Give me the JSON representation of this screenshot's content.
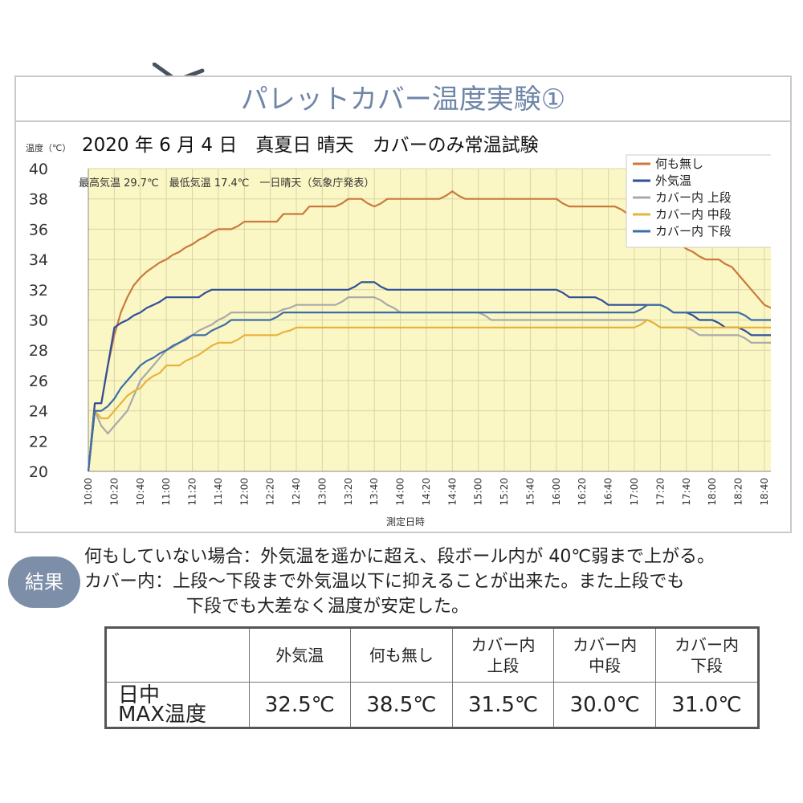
{
  "page_title": "パレットカバー温度実験①",
  "chart_data": {
    "type": "line",
    "title": "2020 年 6 月 4 日　真夏日  晴天　カバーのみ常温試験",
    "subtitle": "最高気温 29.7℃　最低気温 17.4℃　一日晴天（気象庁発表）",
    "ylabel": "温度（℃）",
    "xlabel": "測定日時",
    "ylim": [
      20,
      40
    ],
    "yticks": [
      "20",
      "22",
      "24",
      "26",
      "28",
      "30",
      "32",
      "34",
      "36",
      "38",
      "40"
    ],
    "categories": [
      "10:00",
      "10:05",
      "10:10",
      "10:15",
      "10:20",
      "10:25",
      "10:30",
      "10:35",
      "10:40",
      "10:45",
      "10:50",
      "10:55",
      "11:00",
      "11:05",
      "11:10",
      "11:15",
      "11:20",
      "11:25",
      "11:30",
      "11:35",
      "11:40",
      "11:45",
      "11:50",
      "11:55",
      "12:00",
      "12:05",
      "12:10",
      "12:15",
      "12:20",
      "12:25",
      "12:30",
      "12:35",
      "12:40",
      "12:45",
      "12:50",
      "12:55",
      "13:00",
      "13:05",
      "13:10",
      "13:15",
      "13:20",
      "13:25",
      "13:30",
      "13:35",
      "13:40",
      "13:45",
      "13:50",
      "13:55",
      "14:00",
      "14:05",
      "14:10",
      "14:15",
      "14:20",
      "14:25",
      "14:30",
      "14:35",
      "14:40",
      "14:45",
      "14:50",
      "14:55",
      "15:00",
      "15:05",
      "15:10",
      "15:15",
      "15:20",
      "15:25",
      "15:30",
      "15:35",
      "15:40",
      "15:45",
      "15:50",
      "15:55",
      "16:00",
      "16:05",
      "16:10",
      "16:15",
      "16:20",
      "16:25",
      "16:30",
      "16:35",
      "16:40",
      "16:45",
      "16:50",
      "16:55",
      "17:00",
      "17:05",
      "17:10",
      "17:15",
      "17:20",
      "17:25",
      "17:30",
      "17:35",
      "17:40",
      "17:45",
      "17:50",
      "17:55",
      "18:00",
      "18:05",
      "18:10",
      "18:15",
      "18:20",
      "18:25",
      "18:30",
      "18:35",
      "18:40",
      "18:45"
    ],
    "xtick_labels": [
      "10:00",
      "10:20",
      "10:40",
      "11:00",
      "11:20",
      "11:40",
      "12:00",
      "12:20",
      "12:40",
      "13:00",
      "13:20",
      "13:40",
      "14:00",
      "14:20",
      "14:40",
      "15:00",
      "15:20",
      "15:40",
      "16:00",
      "16:20",
      "16:40",
      "17:00",
      "17:20",
      "17:40",
      "18:00",
      "18:20",
      "18:40"
    ],
    "legend_position": "top-right",
    "grid": true,
    "series": [
      {
        "name": "何も無し",
        "color": "#c97a3c",
        "values": [
          20.0,
          24.5,
          24.5,
          27.0,
          29.0,
          30.5,
          31.5,
          32.3,
          32.8,
          33.2,
          33.5,
          33.8,
          34.0,
          34.3,
          34.5,
          34.8,
          35.0,
          35.3,
          35.5,
          35.8,
          36.0,
          36.0,
          36.0,
          36.2,
          36.5,
          36.5,
          36.5,
          36.5,
          36.5,
          36.5,
          37.0,
          37.0,
          37.0,
          37.0,
          37.5,
          37.5,
          37.5,
          37.5,
          37.5,
          37.7,
          38.0,
          38.0,
          38.0,
          37.7,
          37.5,
          37.7,
          38.0,
          38.0,
          38.0,
          38.0,
          38.0,
          38.0,
          38.0,
          38.0,
          38.0,
          38.2,
          38.5,
          38.2,
          38.0,
          38.0,
          38.0,
          38.0,
          38.0,
          38.0,
          38.0,
          38.0,
          38.0,
          38.0,
          38.0,
          38.0,
          38.0,
          38.0,
          38.0,
          37.7,
          37.5,
          37.5,
          37.5,
          37.5,
          37.5,
          37.5,
          37.5,
          37.5,
          37.3,
          37.0,
          36.7,
          36.5,
          36.2,
          36.0,
          35.7,
          35.5,
          35.2,
          35.0,
          34.7,
          34.5,
          34.2,
          34.0,
          34.0,
          34.0,
          33.7,
          33.5,
          33.0,
          32.5,
          32.0,
          31.5,
          31.0,
          30.8
        ]
      },
      {
        "name": "外気温",
        "color": "#2f4f9a",
        "values": [
          20.0,
          24.5,
          24.5,
          27.0,
          29.5,
          29.8,
          30.0,
          30.3,
          30.5,
          30.8,
          31.0,
          31.2,
          31.5,
          31.5,
          31.5,
          31.5,
          31.5,
          31.5,
          31.8,
          32.0,
          32.0,
          32.0,
          32.0,
          32.0,
          32.0,
          32.0,
          32.0,
          32.0,
          32.0,
          32.0,
          32.0,
          32.0,
          32.0,
          32.0,
          32.0,
          32.0,
          32.0,
          32.0,
          32.0,
          32.0,
          32.0,
          32.2,
          32.5,
          32.5,
          32.5,
          32.2,
          32.0,
          32.0,
          32.0,
          32.0,
          32.0,
          32.0,
          32.0,
          32.0,
          32.0,
          32.0,
          32.0,
          32.0,
          32.0,
          32.0,
          32.0,
          32.0,
          32.0,
          32.0,
          32.0,
          32.0,
          32.0,
          32.0,
          32.0,
          32.0,
          32.0,
          32.0,
          32.0,
          31.8,
          31.5,
          31.5,
          31.5,
          31.5,
          31.5,
          31.3,
          31.0,
          31.0,
          31.0,
          31.0,
          31.0,
          31.0,
          31.0,
          31.0,
          31.0,
          30.8,
          30.5,
          30.5,
          30.5,
          30.3,
          30.0,
          30.0,
          30.0,
          29.8,
          29.5,
          29.5,
          29.5,
          29.3,
          29.0,
          29.0,
          29.0,
          29.0
        ]
      },
      {
        "name": "カバー内 上段",
        "color": "#a9a9a9",
        "values": [
          20.0,
          24.0,
          23.0,
          22.5,
          23.0,
          23.5,
          24.0,
          25.0,
          26.0,
          26.5,
          27.0,
          27.5,
          28.0,
          28.2,
          28.5,
          28.8,
          29.0,
          29.3,
          29.5,
          29.7,
          30.0,
          30.2,
          30.5,
          30.5,
          30.5,
          30.5,
          30.5,
          30.5,
          30.5,
          30.5,
          30.7,
          30.8,
          31.0,
          31.0,
          31.0,
          31.0,
          31.0,
          31.0,
          31.0,
          31.2,
          31.5,
          31.5,
          31.5,
          31.5,
          31.5,
          31.3,
          31.0,
          30.8,
          30.5,
          30.5,
          30.5,
          30.5,
          30.5,
          30.5,
          30.5,
          30.5,
          30.5,
          30.5,
          30.5,
          30.5,
          30.5,
          30.3,
          30.0,
          30.0,
          30.0,
          30.0,
          30.0,
          30.0,
          30.0,
          30.0,
          30.0,
          30.0,
          30.0,
          30.0,
          30.0,
          30.0,
          30.0,
          30.0,
          30.0,
          30.0,
          30.0,
          30.0,
          30.0,
          30.0,
          30.0,
          30.0,
          30.0,
          29.8,
          29.5,
          29.5,
          29.5,
          29.5,
          29.5,
          29.3,
          29.0,
          29.0,
          29.0,
          29.0,
          29.0,
          29.0,
          29.0,
          28.8,
          28.5,
          28.5,
          28.5,
          28.5
        ]
      },
      {
        "name": "カバー内 中段",
        "color": "#e8b33c",
        "values": [
          20.0,
          24.0,
          23.5,
          23.5,
          24.0,
          24.5,
          25.0,
          25.3,
          25.5,
          26.0,
          26.3,
          26.5,
          27.0,
          27.0,
          27.0,
          27.3,
          27.5,
          27.7,
          28.0,
          28.3,
          28.5,
          28.5,
          28.5,
          28.7,
          29.0,
          29.0,
          29.0,
          29.0,
          29.0,
          29.0,
          29.2,
          29.3,
          29.5,
          29.5,
          29.5,
          29.5,
          29.5,
          29.5,
          29.5,
          29.5,
          29.5,
          29.5,
          29.5,
          29.5,
          29.5,
          29.5,
          29.5,
          29.5,
          29.5,
          29.5,
          29.5,
          29.5,
          29.5,
          29.5,
          29.5,
          29.5,
          29.5,
          29.5,
          29.5,
          29.5,
          29.5,
          29.5,
          29.5,
          29.5,
          29.5,
          29.5,
          29.5,
          29.5,
          29.5,
          29.5,
          29.5,
          29.5,
          29.5,
          29.5,
          29.5,
          29.5,
          29.5,
          29.5,
          29.5,
          29.5,
          29.5,
          29.5,
          29.5,
          29.5,
          29.5,
          29.7,
          30.0,
          29.8,
          29.5,
          29.5,
          29.5,
          29.5,
          29.5,
          29.5,
          29.5,
          29.5,
          29.5,
          29.5,
          29.5,
          29.5,
          29.5,
          29.5,
          29.5,
          29.5,
          29.5,
          29.5
        ]
      },
      {
        "name": "カバー内 下段",
        "color": "#3b6ea8",
        "values": [
          20.0,
          24.0,
          24.0,
          24.3,
          24.8,
          25.5,
          26.0,
          26.5,
          27.0,
          27.3,
          27.5,
          27.8,
          28.0,
          28.3,
          28.5,
          28.7,
          29.0,
          29.0,
          29.0,
          29.3,
          29.5,
          29.7,
          30.0,
          30.0,
          30.0,
          30.0,
          30.0,
          30.0,
          30.0,
          30.2,
          30.5,
          30.5,
          30.5,
          30.5,
          30.5,
          30.5,
          30.5,
          30.5,
          30.5,
          30.5,
          30.5,
          30.5,
          30.5,
          30.5,
          30.5,
          30.5,
          30.5,
          30.5,
          30.5,
          30.5,
          30.5,
          30.5,
          30.5,
          30.5,
          30.5,
          30.5,
          30.5,
          30.5,
          30.5,
          30.5,
          30.5,
          30.5,
          30.5,
          30.5,
          30.5,
          30.5,
          30.5,
          30.5,
          30.5,
          30.5,
          30.5,
          30.5,
          30.5,
          30.5,
          30.5,
          30.5,
          30.5,
          30.5,
          30.5,
          30.5,
          30.5,
          30.5,
          30.5,
          30.5,
          30.5,
          30.7,
          31.0,
          31.0,
          31.0,
          30.8,
          30.5,
          30.5,
          30.5,
          30.5,
          30.5,
          30.5,
          30.5,
          30.5,
          30.5,
          30.5,
          30.5,
          30.3,
          30.0,
          30.0,
          30.0,
          30.0
        ]
      }
    ]
  },
  "result": {
    "badge": "結果",
    "line1": "何もしていない場合：外気温を遥かに超え、段ボール内が 40℃弱まで上がる。",
    "line2": "カバー内：上段～下段まで外気温以下に抑えることが出来た。また上段でも",
    "line3": "下段でも大差なく温度が安定した。"
  },
  "table": {
    "row_label_line1": "日中",
    "row_label_line2": "MAX温度",
    "headers": [
      {
        "line1": "外気温",
        "line2": ""
      },
      {
        "line1": "何も無し",
        "line2": ""
      },
      {
        "line1": "カバー内",
        "line2": "上段"
      },
      {
        "line1": "カバー内",
        "line2": "中段"
      },
      {
        "line1": "カバー内",
        "line2": "下段"
      }
    ],
    "values": [
      "32.5℃",
      "38.5℃",
      "31.5℃",
      "30.0℃",
      "31.0℃"
    ]
  }
}
